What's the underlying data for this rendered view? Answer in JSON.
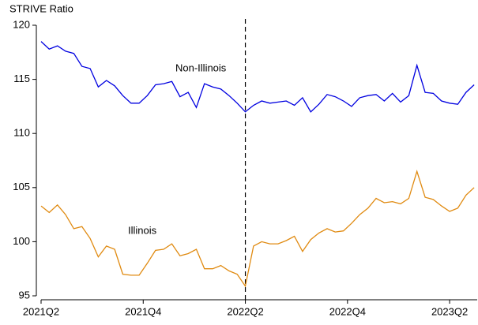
{
  "chart_data": {
    "type": "line",
    "y_label": "STRIVE Ratio",
    "x": [
      2021.25,
      2021.29,
      2021.33,
      2021.37,
      2021.41,
      2021.45,
      2021.49,
      2021.53,
      2021.57,
      2021.61,
      2021.65,
      2021.69,
      2021.73,
      2021.77,
      2021.81,
      2021.85,
      2021.89,
      2021.93,
      2021.97,
      2022.01,
      2022.05,
      2022.09,
      2022.13,
      2022.17,
      2022.21,
      2022.25,
      2022.29,
      2022.33,
      2022.37,
      2022.41,
      2022.45,
      2022.49,
      2022.53,
      2022.57,
      2022.61,
      2022.65,
      2022.69,
      2022.73,
      2022.77,
      2022.81,
      2022.85,
      2022.89,
      2022.93,
      2022.97,
      2023.01,
      2023.05,
      2023.09,
      2023.13,
      2023.17,
      2023.21,
      2023.25,
      2023.29,
      2023.33,
      2023.37
    ],
    "series": [
      {
        "name": "Non-Illinois",
        "color": "#0000e0",
        "values": [
          118.5,
          117.8,
          118.1,
          117.6,
          117.4,
          116.2,
          116.0,
          114.3,
          114.9,
          114.4,
          113.5,
          112.8,
          112.8,
          113.5,
          114.5,
          114.6,
          114.8,
          113.4,
          113.8,
          112.4,
          114.6,
          114.3,
          114.1,
          113.5,
          112.8,
          112.0,
          112.6,
          113.0,
          112.8,
          112.9,
          113.0,
          112.6,
          113.3,
          112.0,
          112.7,
          113.6,
          113.4,
          113.0,
          112.5,
          113.3,
          113.5,
          113.6,
          113.0,
          113.7,
          112.9,
          113.5,
          116.3,
          113.8,
          113.7,
          113.0,
          112.8,
          112.7,
          113.8,
          114.5
        ]
      },
      {
        "name": "Illinois",
        "color": "#e08a10",
        "values": [
          103.3,
          102.7,
          103.4,
          102.5,
          101.2,
          101.4,
          100.3,
          98.6,
          99.6,
          99.3,
          97.0,
          96.9,
          96.9,
          98.0,
          99.2,
          99.3,
          99.8,
          98.7,
          98.9,
          99.3,
          97.5,
          97.5,
          97.8,
          97.3,
          97.0,
          95.9,
          99.6,
          100.0,
          99.8,
          99.8,
          100.1,
          100.5,
          99.1,
          100.2,
          100.8,
          101.2,
          100.9,
          101.0,
          101.7,
          102.5,
          103.1,
          104.0,
          103.6,
          103.7,
          103.5,
          104.0,
          106.5,
          104.1,
          103.9,
          103.3,
          102.8,
          103.1,
          104.3,
          105.0
        ]
      }
    ],
    "xlim": [
      2021.25,
      2023.385
    ],
    "xticks": [
      {
        "value": 2021.25,
        "label": "2021Q2"
      },
      {
        "value": 2021.75,
        "label": "2021Q4"
      },
      {
        "value": 2022.25,
        "label": "2022Q2"
      },
      {
        "value": 2022.75,
        "label": "2022Q4"
      },
      {
        "value": 2023.25,
        "label": "2023Q2"
      }
    ],
    "ylim": [
      95,
      120
    ],
    "yticks": [
      95,
      100,
      105,
      110,
      115,
      120
    ],
    "vline": 2022.25,
    "grid": false
  }
}
